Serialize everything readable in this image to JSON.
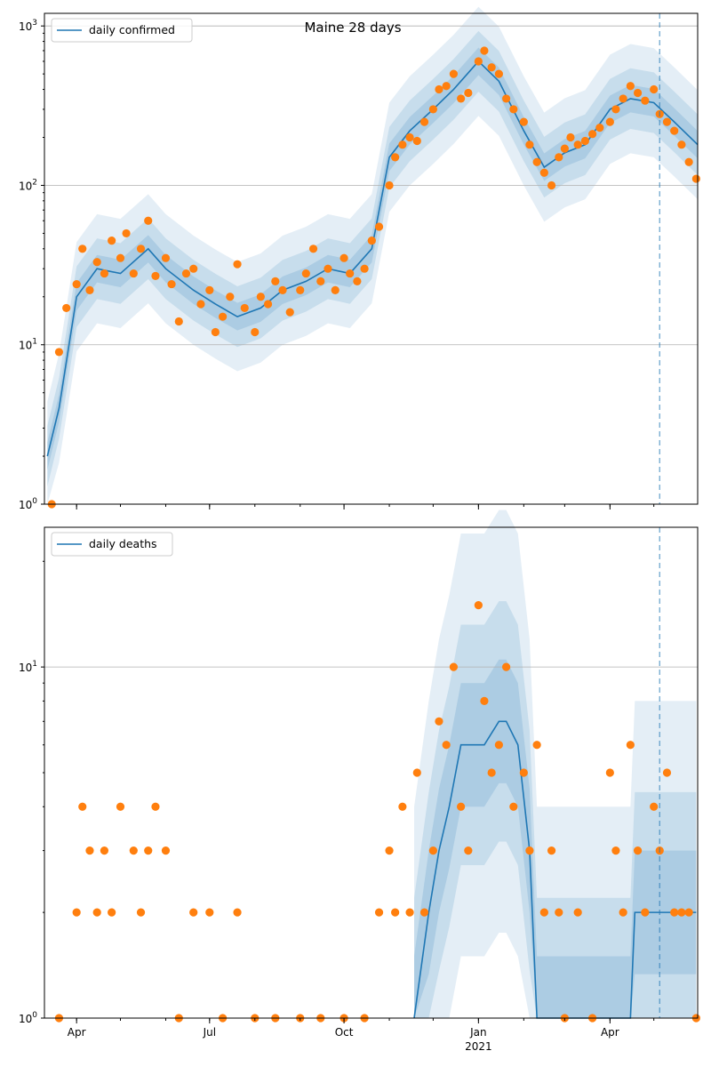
{
  "figure": {
    "title": "Maine 28 days",
    "colors": {
      "model_line": "#1f77b4",
      "observed_points": "#ff7f0e",
      "band": "#1f77b4",
      "grid": "#b0b0b0",
      "vline": "#1f77b4"
    }
  },
  "chart_data": [
    {
      "type": "line",
      "title": "Maine 28 days",
      "legend": [
        "daily confirmed"
      ],
      "legend_position": "top-left",
      "yscale": "log",
      "ylim": [
        1,
        1200
      ],
      "xlim": [
        "2020-03-10",
        "2021-05-31"
      ],
      "ytick_labels": [
        "10^0",
        "10^1",
        "10^2",
        "10^3"
      ],
      "xtick_labels": [
        "Apr",
        "Jul",
        "Oct",
        "Jan 2021",
        "Apr"
      ],
      "vline_date": "2021-05-05",
      "grid": "horizontal major",
      "series": [
        {
          "name": "daily confirmed",
          "kind": "model median",
          "x": [
            "2020-03-12",
            "2020-03-20",
            "2020-04-01",
            "2020-04-15",
            "2020-05-01",
            "2020-05-20",
            "2020-06-01",
            "2020-06-20",
            "2020-07-05",
            "2020-07-20",
            "2020-08-05",
            "2020-08-20",
            "2020-09-05",
            "2020-09-20",
            "2020-10-05",
            "2020-10-20",
            "2020-11-01",
            "2020-11-15",
            "2020-12-01",
            "2020-12-15",
            "2021-01-01",
            "2021-01-15",
            "2021-02-01",
            "2021-02-15",
            "2021-03-01",
            "2021-03-15",
            "2021-04-01",
            "2021-04-15",
            "2021-05-01",
            "2021-05-15",
            "2021-05-31"
          ],
          "values": [
            2,
            4,
            20,
            30,
            28,
            40,
            30,
            22,
            18,
            15,
            17,
            22,
            25,
            30,
            28,
            40,
            150,
            220,
            300,
            400,
            600,
            450,
            220,
            130,
            160,
            180,
            300,
            350,
            330,
            250,
            180
          ]
        },
        {
          "name": "",
          "kind": "observed",
          "x": [
            "2020-03-15",
            "2020-03-20",
            "2020-03-25",
            "2020-04-01",
            "2020-04-05",
            "2020-04-10",
            "2020-04-15",
            "2020-04-20",
            "2020-04-25",
            "2020-05-01",
            "2020-05-05",
            "2020-05-10",
            "2020-05-15",
            "2020-05-20",
            "2020-05-25",
            "2020-06-01",
            "2020-06-05",
            "2020-06-10",
            "2020-06-15",
            "2020-06-20",
            "2020-06-25",
            "2020-07-01",
            "2020-07-05",
            "2020-07-10",
            "2020-07-15",
            "2020-07-20",
            "2020-07-25",
            "2020-08-01",
            "2020-08-05",
            "2020-08-10",
            "2020-08-15",
            "2020-08-20",
            "2020-08-25",
            "2020-09-01",
            "2020-09-05",
            "2020-09-10",
            "2020-09-15",
            "2020-09-20",
            "2020-09-25",
            "2020-10-01",
            "2020-10-05",
            "2020-10-10",
            "2020-10-15",
            "2020-10-20",
            "2020-10-25",
            "2020-11-01",
            "2020-11-05",
            "2020-11-10",
            "2020-11-15",
            "2020-11-20",
            "2020-11-25",
            "2020-12-01",
            "2020-12-05",
            "2020-12-10",
            "2020-12-15",
            "2020-12-20",
            "2020-12-25",
            "2021-01-01",
            "2021-01-05",
            "2021-01-10",
            "2021-01-15",
            "2021-01-20",
            "2021-01-25",
            "2021-02-01",
            "2021-02-05",
            "2021-02-10",
            "2021-02-15",
            "2021-02-20",
            "2021-02-25",
            "2021-03-01",
            "2021-03-05",
            "2021-03-10",
            "2021-03-15",
            "2021-03-20",
            "2021-03-25",
            "2021-04-01",
            "2021-04-05",
            "2021-04-10",
            "2021-04-15",
            "2021-04-20",
            "2021-04-25",
            "2021-05-01",
            "2021-05-05",
            "2021-05-10",
            "2021-05-15",
            "2021-05-20",
            "2021-05-25",
            "2021-05-30"
          ],
          "values": [
            1,
            9,
            17,
            24,
            40,
            22,
            33,
            28,
            45,
            35,
            50,
            28,
            40,
            60,
            27,
            35,
            24,
            14,
            28,
            30,
            18,
            22,
            12,
            15,
            20,
            32,
            17,
            12,
            20,
            18,
            25,
            22,
            16,
            22,
            28,
            40,
            25,
            30,
            22,
            35,
            28,
            25,
            30,
            45,
            55,
            100,
            150,
            180,
            200,
            190,
            250,
            300,
            400,
            420,
            500,
            350,
            380,
            600,
            700,
            550,
            500,
            350,
            300,
            250,
            180,
            140,
            120,
            100,
            150,
            170,
            200,
            180,
            190,
            210,
            230,
            250,
            300,
            350,
            420,
            380,
            340,
            400,
            280,
            250,
            220,
            180,
            140,
            110
          ]
        }
      ]
    },
    {
      "type": "line",
      "title": "",
      "legend": [
        "daily deaths"
      ],
      "legend_position": "top-left",
      "yscale": "log",
      "ylim": [
        1,
        25
      ],
      "xlim": [
        "2020-03-10",
        "2021-05-31"
      ],
      "ytick_labels": [
        "10^0",
        "10^1"
      ],
      "xtick_labels": [
        "Apr",
        "Jul",
        "Oct",
        "Jan 2021",
        "Apr"
      ],
      "vline_date": "2021-05-05",
      "grid": "horizontal major",
      "series": [
        {
          "name": "daily deaths",
          "kind": "model median",
          "x": [
            "2020-11-18",
            "2020-11-28",
            "2020-12-05",
            "2020-12-12",
            "2020-12-20",
            "2021-01-05",
            "2021-01-15",
            "2021-01-20",
            "2021-01-28",
            "2021-02-05",
            "2021-02-10",
            "2021-02-12",
            "2021-04-15",
            "2021-04-18",
            "2021-05-30"
          ],
          "values": [
            1,
            2,
            3,
            4,
            6,
            6,
            7,
            7,
            6,
            3,
            1,
            1,
            1,
            2,
            2
          ]
        },
        {
          "name": "",
          "kind": "observed",
          "x": [
            "2020-03-20",
            "2020-04-01",
            "2020-04-05",
            "2020-04-10",
            "2020-04-15",
            "2020-04-20",
            "2020-04-25",
            "2020-05-01",
            "2020-05-10",
            "2020-05-15",
            "2020-05-20",
            "2020-05-25",
            "2020-06-01",
            "2020-06-10",
            "2020-06-20",
            "2020-07-01",
            "2020-07-10",
            "2020-07-20",
            "2020-08-01",
            "2020-08-15",
            "2020-09-01",
            "2020-09-15",
            "2020-10-01",
            "2020-10-15",
            "2020-10-25",
            "2020-11-01",
            "2020-11-05",
            "2020-11-10",
            "2020-11-15",
            "2020-11-20",
            "2020-11-25",
            "2020-12-01",
            "2020-12-05",
            "2020-12-10",
            "2020-12-15",
            "2020-12-20",
            "2020-12-25",
            "2021-01-01",
            "2021-01-05",
            "2021-01-10",
            "2021-01-15",
            "2021-01-20",
            "2021-01-25",
            "2021-02-01",
            "2021-02-05",
            "2021-02-10",
            "2021-02-15",
            "2021-02-20",
            "2021-02-25",
            "2021-03-01",
            "2021-03-10",
            "2021-03-20",
            "2021-04-01",
            "2021-04-05",
            "2021-04-10",
            "2021-04-15",
            "2021-04-20",
            "2021-04-25",
            "2021-05-01",
            "2021-05-05",
            "2021-05-10",
            "2021-05-15",
            "2021-05-20",
            "2021-05-25",
            "2021-05-30"
          ],
          "values": [
            1,
            2,
            4,
            3,
            2,
            3,
            2,
            4,
            3,
            2,
            3,
            4,
            3,
            1,
            2,
            2,
            1,
            2,
            1,
            1,
            1,
            1,
            1,
            1,
            2,
            3,
            2,
            4,
            2,
            5,
            2,
            3,
            7,
            6,
            10,
            4,
            3,
            15,
            8,
            5,
            6,
            10,
            4,
            5,
            3,
            6,
            2,
            3,
            2,
            1,
            2,
            1,
            5,
            3,
            2,
            6,
            3,
            2,
            4,
            3,
            5,
            2,
            2,
            2,
            1
          ]
        }
      ]
    }
  ]
}
